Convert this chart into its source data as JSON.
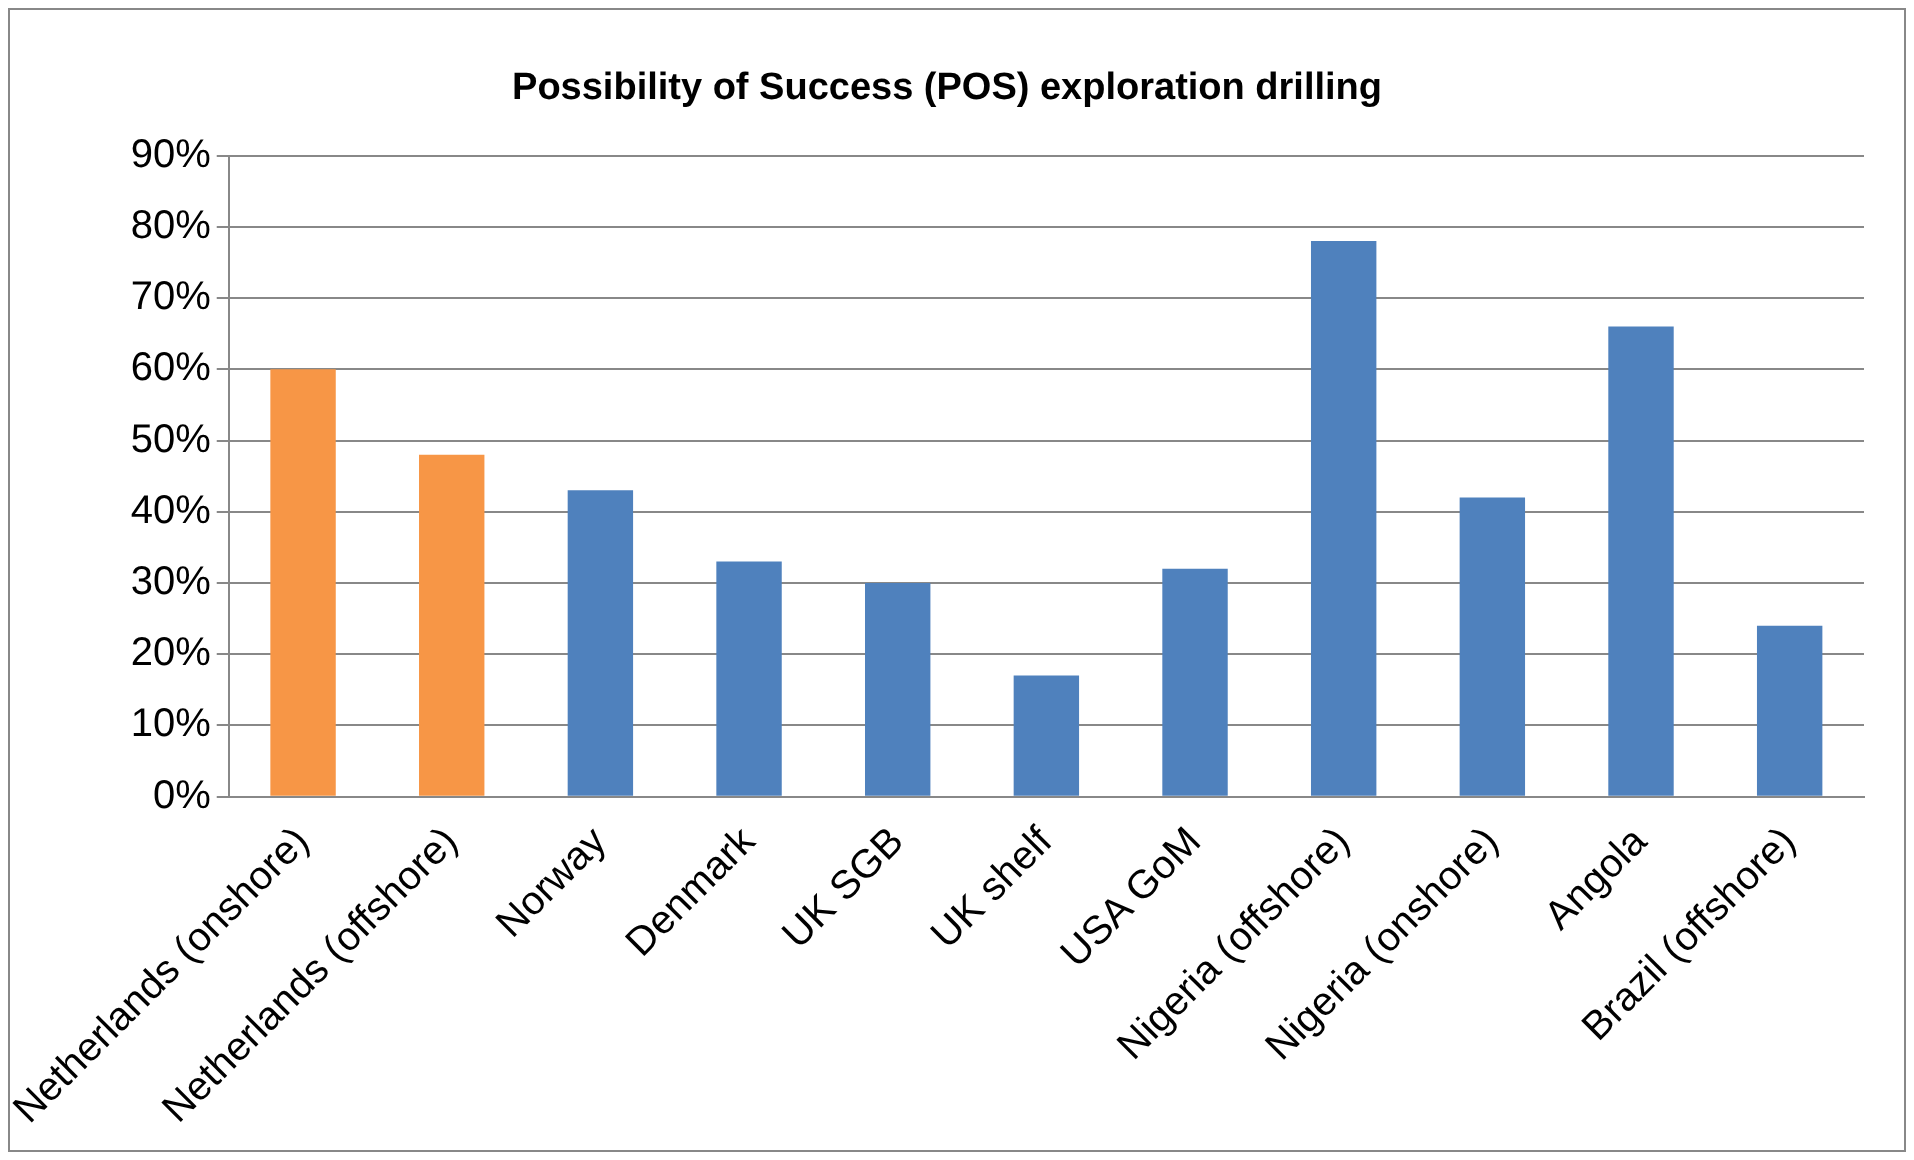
{
  "chart_data": {
    "type": "bar",
    "title": "Possibility of Success (POS) exploration drilling",
    "categories": [
      "Netherlands (onshore)",
      "Netherlands (offshore)",
      "Norway",
      "Denmark",
      "UK SGB",
      "UK shelf",
      "USA GoM",
      "Nigeria (offshore)",
      "Nigeria (onshore)",
      "Angola",
      "Brazil (offshore)"
    ],
    "values": [
      60,
      48,
      43,
      33,
      30,
      17,
      32,
      78,
      42,
      66,
      24
    ],
    "colors": [
      "#f79646",
      "#f79646",
      "#4f81bd",
      "#4f81bd",
      "#4f81bd",
      "#4f81bd",
      "#4f81bd",
      "#4f81bd",
      "#4f81bd",
      "#4f81bd",
      "#4f81bd"
    ],
    "ylim": [
      0,
      90
    ],
    "yticks": [
      {
        "value": 0,
        "label": "0%"
      },
      {
        "value": 10,
        "label": "10%"
      },
      {
        "value": 20,
        "label": "20%"
      },
      {
        "value": 30,
        "label": "30%"
      },
      {
        "value": 40,
        "label": "40%"
      },
      {
        "value": 50,
        "label": "50%"
      },
      {
        "value": 60,
        "label": "60%"
      },
      {
        "value": 70,
        "label": "70%"
      },
      {
        "value": 80,
        "label": "80%"
      },
      {
        "value": 90,
        "label": "90%"
      }
    ],
    "grid": "y"
  }
}
